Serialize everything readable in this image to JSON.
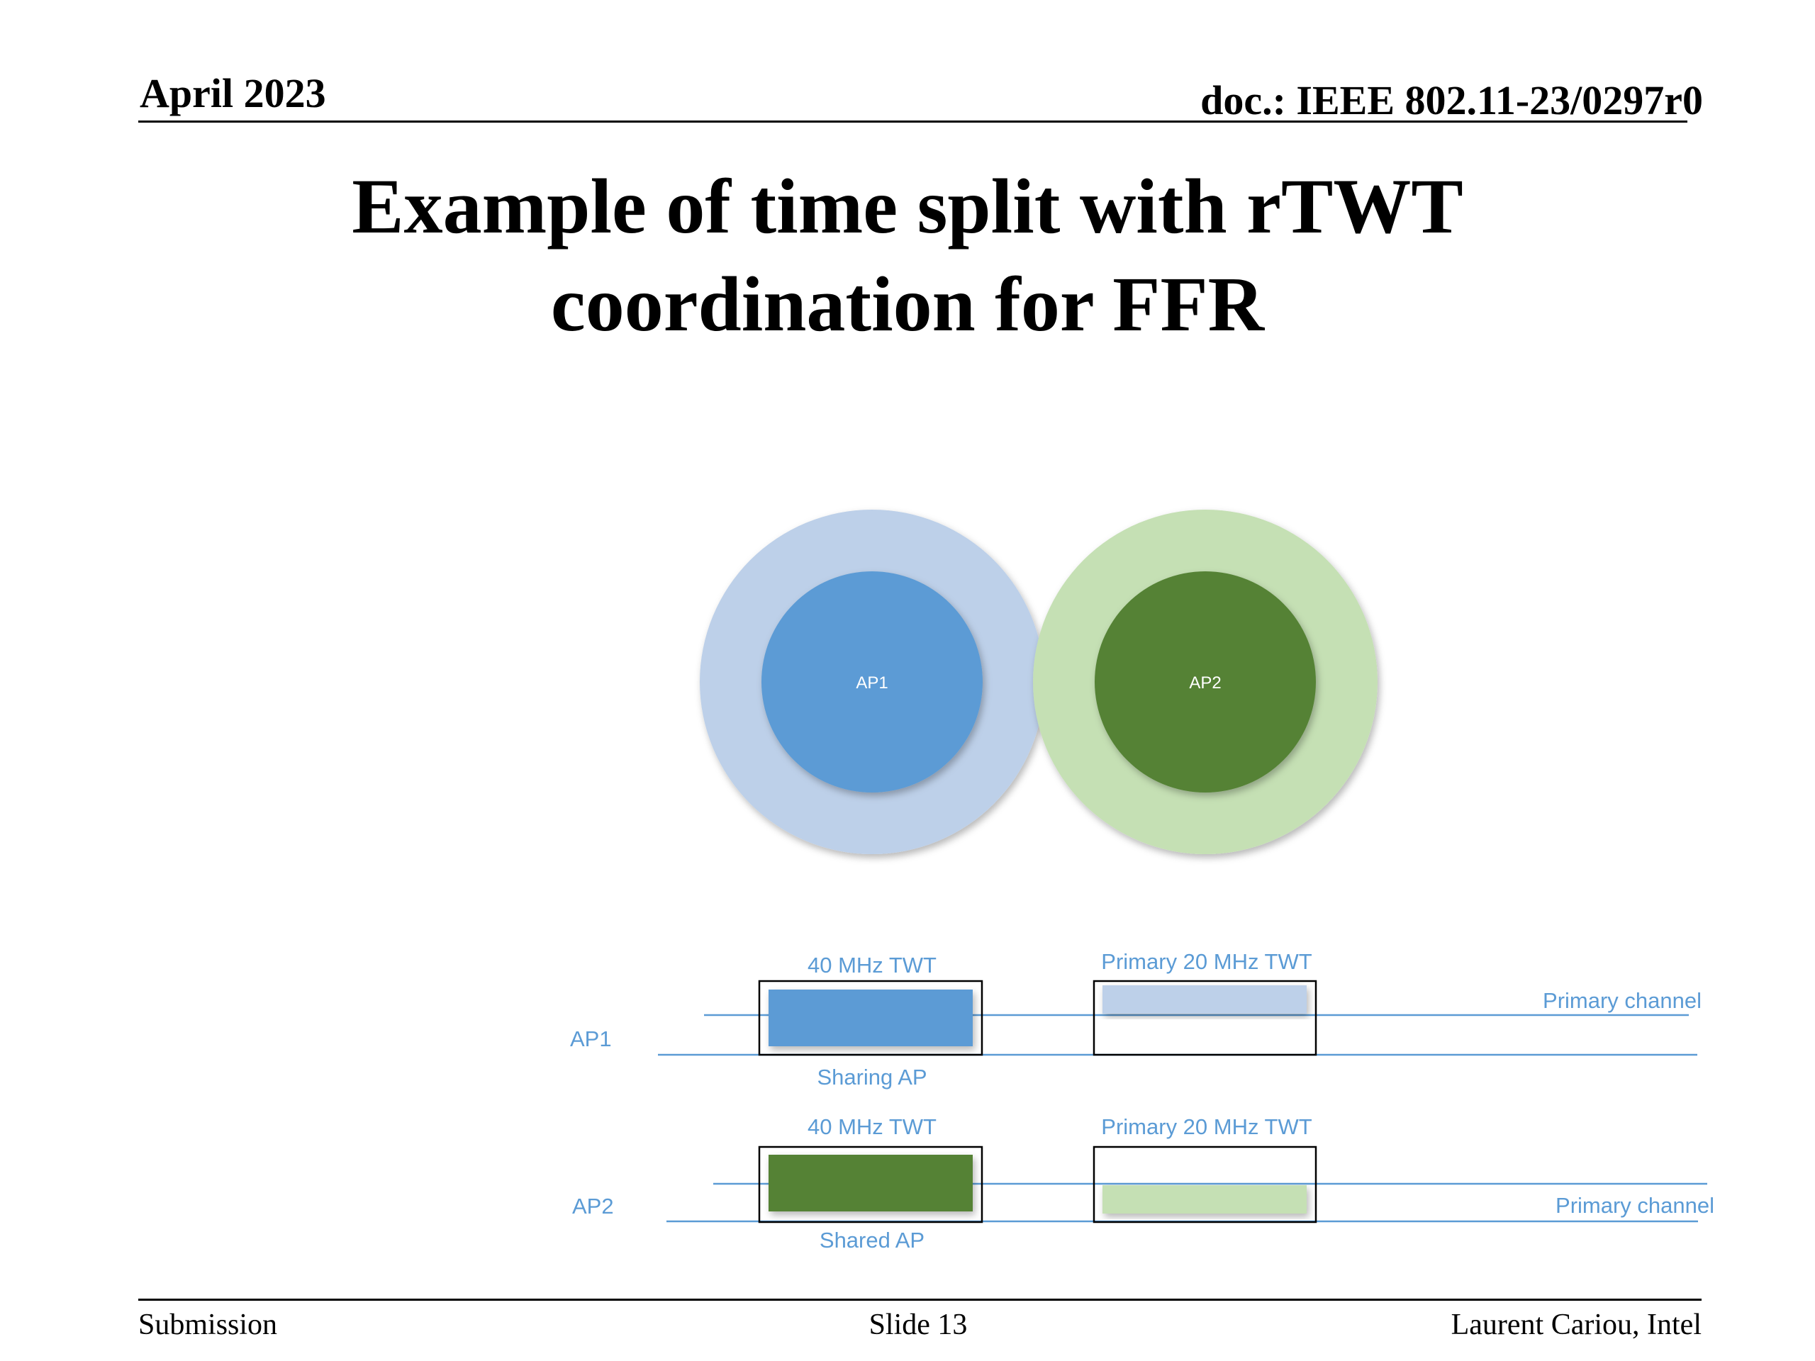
{
  "header": {
    "date": "April 2023",
    "doc_id": "doc.: IEEE 802.11-23/0297r0"
  },
  "title": {
    "line1": "Example of time split with rTWT",
    "line2": "coordination for FFR"
  },
  "circles": {
    "ap1_label": "AP1",
    "ap2_label": "AP2"
  },
  "timeline": {
    "ap1": {
      "row_label": "AP1",
      "twt_40_label": "40 MHz TWT",
      "twt_primary_label": "Primary 20 MHz TWT",
      "primary_channel_label": "Primary channel",
      "role_label": "Sharing AP"
    },
    "ap2": {
      "row_label": "AP2",
      "twt_40_label": "40 MHz TWT",
      "twt_primary_label": "Primary 20 MHz TWT",
      "primary_channel_label": "Primary channel",
      "role_label": "Shared AP"
    }
  },
  "colors": {
    "ap1_inner": "#5b9bd5",
    "ap1_outer": "#bdd0e9",
    "ap2_inner": "#548235",
    "ap2_outer": "#c5e0b4",
    "label_text": "#5b9bd5",
    "channel_line": "#5b9bd5"
  },
  "footer": {
    "left": "Submission",
    "center": "Slide 13",
    "right": "Laurent Cariou, Intel"
  }
}
